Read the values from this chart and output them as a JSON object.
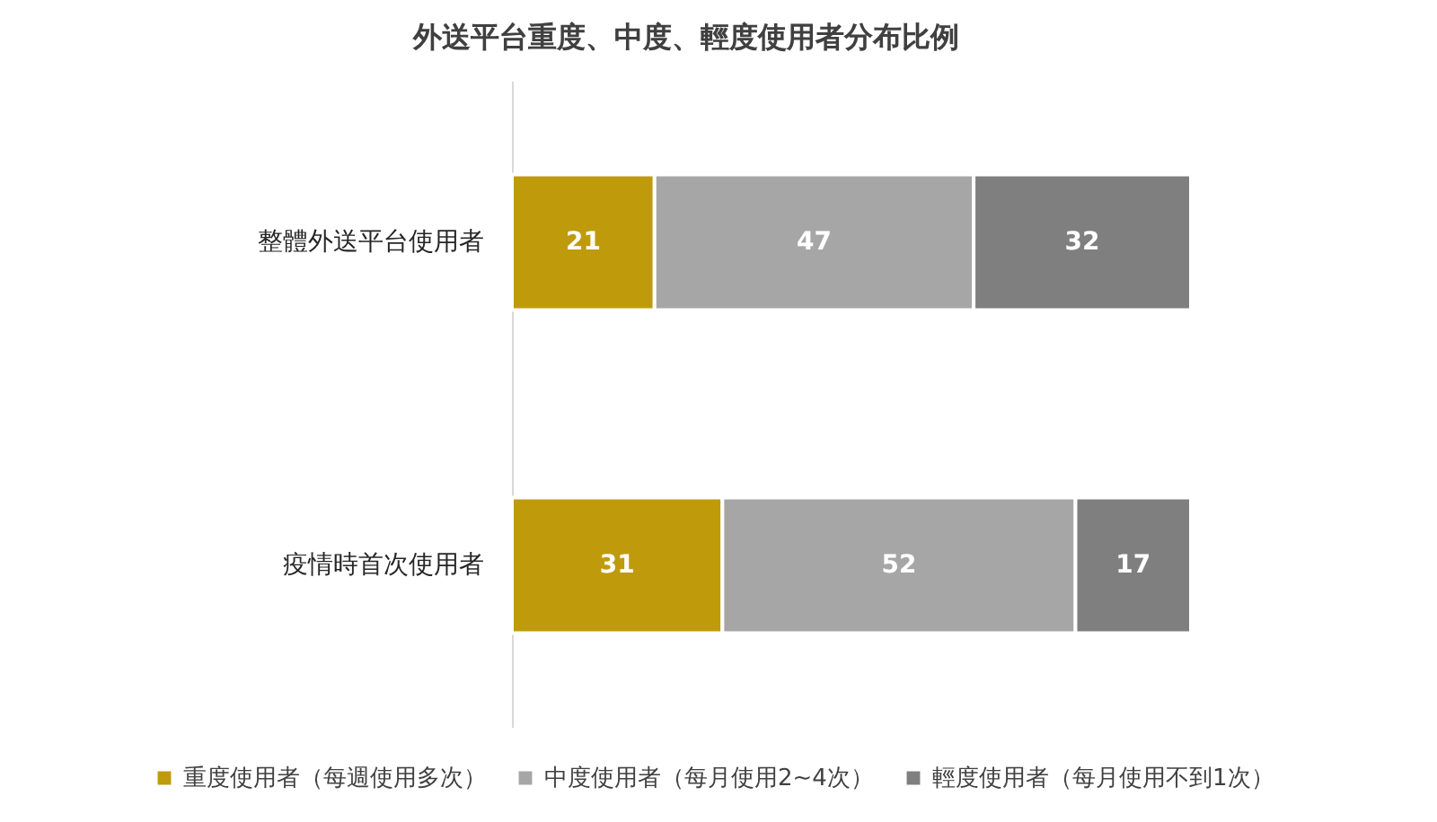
{
  "chart_data": {
    "type": "bar",
    "orientation": "horizontal",
    "stacked": true,
    "title": "外送平台重度、中度、輕度使用者分布比例",
    "categories": [
      "整體外送平台使用者",
      "疫情時首次使用者"
    ],
    "series": [
      {
        "name": "重度使用者（每週使用多次）",
        "color": "#bf9b0c",
        "values": [
          21,
          31
        ]
      },
      {
        "name": "中度使用者（每月使用2~4次）",
        "color": "#a6a6a6",
        "values": [
          47,
          52
        ]
      },
      {
        "name": "輕度使用者（每月使用不到1次）",
        "color": "#7f7f7f",
        "values": [
          32,
          17
        ]
      }
    ],
    "xlim": [
      0,
      100
    ],
    "data_labels": true,
    "tick_labels": "y",
    "legend": "bottom"
  }
}
